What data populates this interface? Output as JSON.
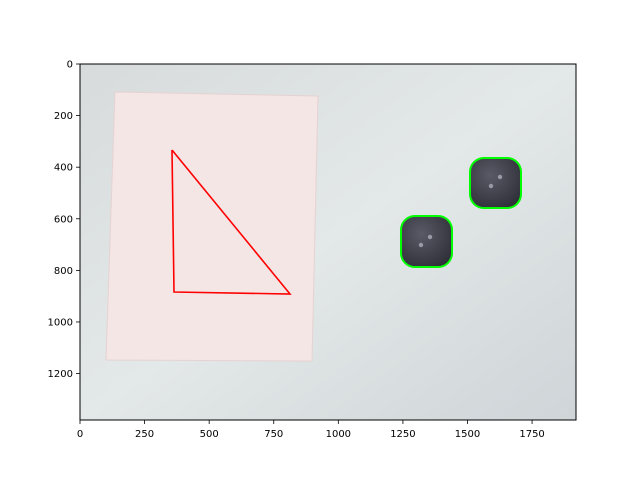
{
  "figure": {
    "image_content": {
      "background": "light gray-blue tabletop photograph",
      "objects": [
        {
          "name": "paper-sheet",
          "color": "#f3e3e2"
        },
        {
          "name": "drawn-triangle",
          "color": "#ff0000",
          "vertices": [
            [
              355,
              335
            ],
            [
              360,
              885
            ],
            [
              815,
              893
            ]
          ]
        },
        {
          "name": "button-1",
          "color": "#3a3a46",
          "outline_color": "#00ff00",
          "center": [
            1610,
            462
          ]
        },
        {
          "name": "button-2",
          "color": "#3a3a46",
          "outline_color": "#00ff00",
          "center": [
            1340,
            690
          ]
        }
      ]
    },
    "x_axis": {
      "range": [
        0,
        1920
      ],
      "ticks": [
        0,
        250,
        500,
        750,
        1000,
        1250,
        1500,
        1750
      ],
      "tick_labels": [
        "0",
        "250",
        "500",
        "750",
        "1000",
        "1250",
        "1500",
        "1750"
      ]
    },
    "y_axis": {
      "range": [
        1380,
        0
      ],
      "ticks": [
        0,
        200,
        400,
        600,
        800,
        1000,
        1200
      ],
      "tick_labels": [
        "0",
        "200",
        "400",
        "600",
        "800",
        "1000",
        "1200"
      ]
    }
  }
}
